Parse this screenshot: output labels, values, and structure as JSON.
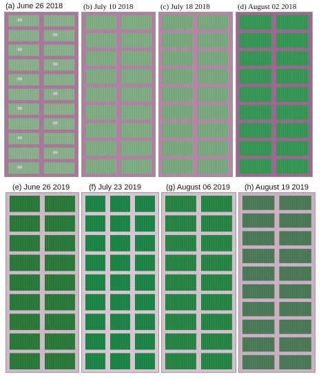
{
  "figure": {
    "panels": [
      {
        "label": "(a) June 26 2018",
        "style": "sans",
        "palette": {
          "bg": "#a8789b",
          "plot": "#8fb38f",
          "stripe": "#6f9a74",
          "spots": true
        },
        "cols": 2,
        "rows": 11
      },
      {
        "label": "(b) July 10 2018",
        "style": "serif",
        "palette": {
          "bg": "#b07fa3",
          "plot": "#86b088",
          "stripe": "#5f9467",
          "spots": false
        },
        "cols": 2,
        "rows": 9
      },
      {
        "label": "(c) July 18 2018",
        "style": "serif",
        "palette": {
          "bg": "#b585a6",
          "plot": "#7fae84",
          "stripe": "#5a8f62",
          "spots": false
        },
        "cols": 2,
        "rows": 9
      },
      {
        "label": "(d) August 02 2018",
        "style": "serif",
        "palette": {
          "bg": "#9a6a8e",
          "plot": "#3a9c5a",
          "stripe": "#2c7c46",
          "spots": false
        },
        "cols": 2,
        "rows": 9
      },
      {
        "label": "(e) June 26 2019",
        "style": "sans",
        "palette": {
          "bg": "#cdb9c6",
          "plot": "#2f7e3e",
          "stripe": "#1f5e2c",
          "spots": false
        },
        "cols": 2,
        "rows": 9
      },
      {
        "label": "(f) July 23 2019",
        "style": "sans",
        "palette": {
          "bg": "#d7c6d2",
          "plot": "#1f8a49",
          "stripe": "#156a36",
          "spots": false
        },
        "cols": 3,
        "rows": 9
      },
      {
        "label": "(g) August 06 2019",
        "style": "sans",
        "palette": {
          "bg": "#d3c0cd",
          "plot": "#2a8a4a",
          "stripe": "#1c6a37",
          "spots": false
        },
        "cols": 2,
        "rows": 9
      },
      {
        "label": "(h) August 19 2019",
        "style": "sans",
        "palette": {
          "bg": "#c9b0c2",
          "plot": "#4f7e5c",
          "stripe": "#3c6648",
          "spots": false
        },
        "cols": 2,
        "rows": 10
      }
    ]
  }
}
